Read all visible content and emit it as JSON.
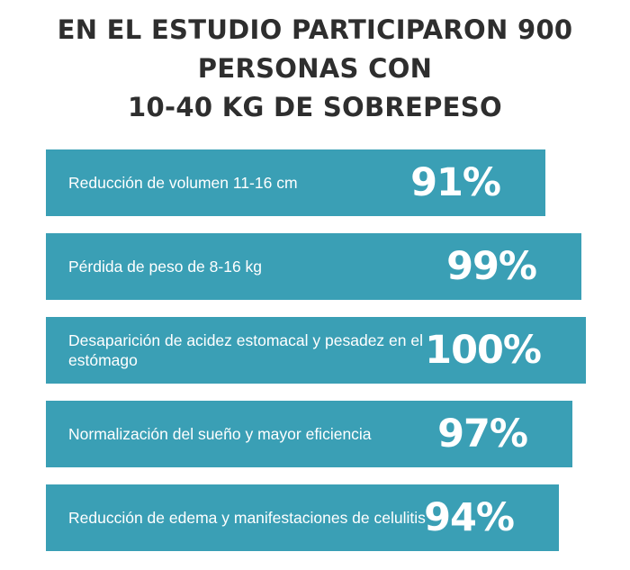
{
  "chart_data": {
    "type": "bar",
    "title_lines": [
      "EN EL ESTUDIO PARTICIPARON 900",
      "PERSONAS CON",
      "10-40 KG DE SOBREPESO"
    ],
    "categories": [
      "Reducción de volumen 11-16 cm",
      "Pérdida de peso de 8-16 kg",
      "Desaparición de acidez estomacal y pesadez en el estómago",
      "Normalización del sueño y mayor eficiencia",
      "Reducción de edema y manifestaciones de celulitis"
    ],
    "values": [
      91,
      99,
      100,
      97,
      94
    ],
    "value_labels": [
      "91%",
      "99%",
      "100%",
      "97%",
      "94%"
    ],
    "xlim": [
      0,
      100
    ],
    "orientation": "horizontal",
    "bar_color": "#3a9fb5",
    "text_color": "#ffffff",
    "title_color": "#2e2e2e"
  }
}
